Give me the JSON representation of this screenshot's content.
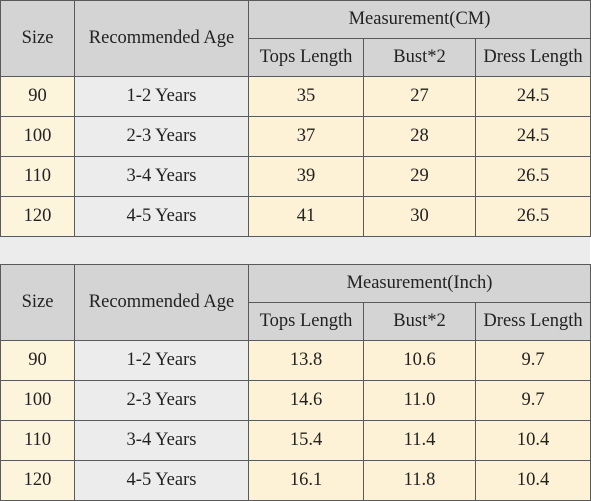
{
  "colors": {
    "header_bg": "#d4d4d4",
    "size_cell_bg": "#fdf4dc",
    "age_cell_bg": "#ececec",
    "value_cell_bg": "#fdf2d6",
    "border": "#5a5a5a"
  },
  "tables": [
    {
      "size_header": "Size",
      "age_header": "Recommended Age",
      "measurement_header": "Measurement(CM)",
      "columns": [
        "Tops Length",
        "Bust*2",
        "Dress Length"
      ],
      "rows": [
        {
          "size": "90",
          "age": "1-2 Years",
          "tops": "35",
          "bust": "27",
          "dress": "24.5"
        },
        {
          "size": "100",
          "age": "2-3 Years",
          "tops": "37",
          "bust": "28",
          "dress": "24.5"
        },
        {
          "size": "110",
          "age": "3-4 Years",
          "tops": "39",
          "bust": "29",
          "dress": "26.5"
        },
        {
          "size": "120",
          "age": "4-5 Years",
          "tops": "41",
          "bust": "30",
          "dress": "26.5"
        }
      ]
    },
    {
      "size_header": "Size",
      "age_header": "Recommended Age",
      "measurement_header": "Measurement(Inch)",
      "columns": [
        "Tops Length",
        "Bust*2",
        "Dress Length"
      ],
      "rows": [
        {
          "size": "90",
          "age": "1-2 Years",
          "tops": "13.8",
          "bust": "10.6",
          "dress": "9.7"
        },
        {
          "size": "100",
          "age": "2-3 Years",
          "tops": "14.6",
          "bust": "11.0",
          "dress": "9.7"
        },
        {
          "size": "110",
          "age": "3-4 Years",
          "tops": "15.4",
          "bust": "11.4",
          "dress": "10.4"
        },
        {
          "size": "120",
          "age": "4-5 Years",
          "tops": "16.1",
          "bust": "11.8",
          "dress": "10.4"
        }
      ]
    }
  ]
}
